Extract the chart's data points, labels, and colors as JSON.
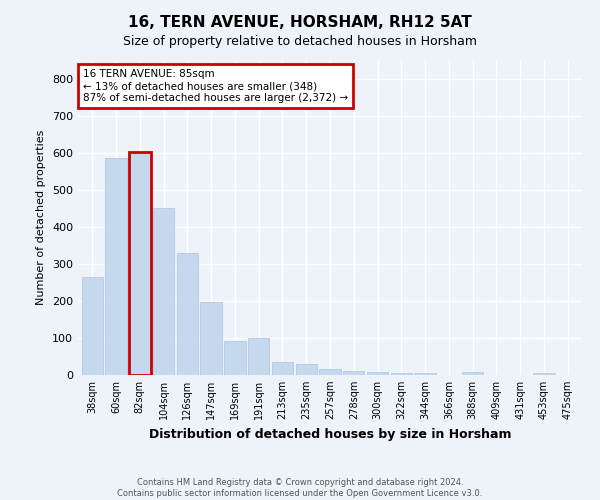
{
  "title": "16, TERN AVENUE, HORSHAM, RH12 5AT",
  "subtitle": "Size of property relative to detached houses in Horsham",
  "xlabel": "Distribution of detached houses by size in Horsham",
  "ylabel": "Number of detached properties",
  "categories": [
    "38sqm",
    "60sqm",
    "82sqm",
    "104sqm",
    "126sqm",
    "147sqm",
    "169sqm",
    "191sqm",
    "213sqm",
    "235sqm",
    "257sqm",
    "278sqm",
    "300sqm",
    "322sqm",
    "344sqm",
    "366sqm",
    "388sqm",
    "409sqm",
    "431sqm",
    "453sqm",
    "475sqm"
  ],
  "values": [
    265,
    585,
    603,
    450,
    328,
    196,
    91,
    101,
    35,
    30,
    15,
    10,
    8,
    5,
    5,
    0,
    7,
    0,
    0,
    5,
    0
  ],
  "bar_color": "#c5d9ee",
  "bar_edge_color": "#aac4de",
  "highlight_bar_index": 2,
  "highlight_bar_edge_color": "#cc0000",
  "annotation_text": "16 TERN AVENUE: 85sqm\n← 13% of detached houses are smaller (348)\n87% of semi-detached houses are larger (2,372) →",
  "annotation_box_color": "#ffffff",
  "annotation_box_edge_color": "#cc0000",
  "ylim": [
    0,
    850
  ],
  "yticks": [
    0,
    100,
    200,
    300,
    400,
    500,
    600,
    700,
    800
  ],
  "footer_line1": "Contains HM Land Registry data © Crown copyright and database right 2024.",
  "footer_line2": "Contains public sector information licensed under the Open Government Licence v3.0.",
  "bg_color": "#eef2f9",
  "plot_bg_color": "#eef2f9",
  "grid_color": "#ffffff"
}
